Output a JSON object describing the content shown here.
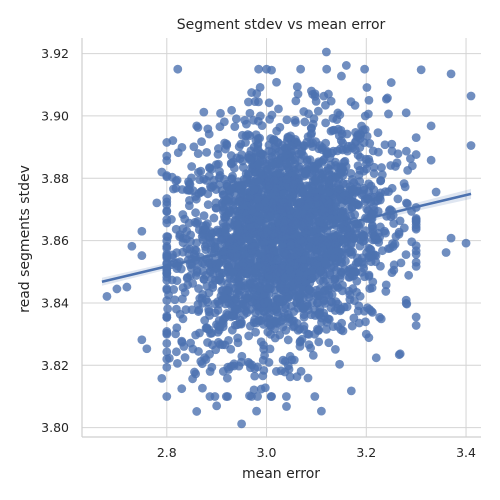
{
  "chart_data": {
    "type": "scatter",
    "title": "Segment stdev vs mean error",
    "xlabel": "mean error",
    "ylabel": "read segments stdev",
    "xlim": [
      2.63,
      3.43
    ],
    "ylim": [
      3.797,
      3.925
    ],
    "xticks": [
      2.8,
      3.0,
      3.2,
      3.4
    ],
    "xtick_labels": [
      "2.8",
      "3.0",
      "3.2",
      "3.4"
    ],
    "yticks": [
      3.8,
      3.82,
      3.84,
      3.86,
      3.88,
      3.9,
      3.92
    ],
    "ytick_labels": [
      "3.80",
      "3.82",
      "3.84",
      "3.86",
      "3.88",
      "3.90",
      "3.92"
    ],
    "grid": true,
    "color": "#4c72b0",
    "regression": {
      "x_start": 2.67,
      "y_start": 3.8468,
      "x_end": 3.41,
      "y_end": 3.875,
      "ci": true
    },
    "cloud": {
      "n": 2600,
      "x_mean": 3.03,
      "x_sd": 0.105,
      "y_mean": 3.8615,
      "y_sd": 0.0185,
      "corr": 0.2
    },
    "outliers": [
      {
        "x": 3.12,
        "y": 3.9205
      },
      {
        "x": 3.37,
        "y": 3.9135
      },
      {
        "x": 3.31,
        "y": 3.9148
      },
      {
        "x": 3.41,
        "y": 3.9064
      },
      {
        "x": 3.41,
        "y": 3.8905
      },
      {
        "x": 3.4,
        "y": 3.8592
      },
      {
        "x": 3.37,
        "y": 3.8608
      },
      {
        "x": 3.36,
        "y": 3.8562
      },
      {
        "x": 3.34,
        "y": 3.8756
      },
      {
        "x": 3.33,
        "y": 3.8858
      },
      {
        "x": 3.28,
        "y": 3.8409
      },
      {
        "x": 3.24,
        "y": 3.8458
      },
      {
        "x": 3.23,
        "y": 3.8349
      },
      {
        "x": 3.22,
        "y": 3.8224
      },
      {
        "x": 3.2,
        "y": 3.83
      },
      {
        "x": 3.17,
        "y": 3.8118
      },
      {
        "x": 3.11,
        "y": 3.8053
      },
      {
        "x": 3.04,
        "y": 3.8068
      },
      {
        "x": 2.95,
        "y": 3.8012
      },
      {
        "x": 2.98,
        "y": 3.8053
      },
      {
        "x": 2.9,
        "y": 3.807
      },
      {
        "x": 2.86,
        "y": 3.8052
      },
      {
        "x": 2.83,
        "y": 3.8125
      },
      {
        "x": 2.79,
        "y": 3.8158
      },
      {
        "x": 2.75,
        "y": 3.8282
      },
      {
        "x": 2.76,
        "y": 3.8253
      },
      {
        "x": 2.7,
        "y": 3.8445
      },
      {
        "x": 2.72,
        "y": 3.8451
      },
      {
        "x": 2.68,
        "y": 3.8421
      },
      {
        "x": 2.73,
        "y": 3.8582
      },
      {
        "x": 2.75,
        "y": 3.8552
      },
      {
        "x": 2.75,
        "y": 3.863
      },
      {
        "x": 2.78,
        "y": 3.8721
      },
      {
        "x": 2.79,
        "y": 3.882
      },
      {
        "x": 2.8,
        "y": 3.8915
      },
      {
        "x": 2.86,
        "y": 3.8968
      },
      {
        "x": 2.88,
        "y": 3.8883
      },
      {
        "x": 2.93,
        "y": 3.9018
      },
      {
        "x": 2.97,
        "y": 3.9075
      },
      {
        "x": 3.0,
        "y": 3.915
      },
      {
        "x": 3.01,
        "y": 3.9147
      },
      {
        "x": 3.02,
        "y": 3.9108
      },
      {
        "x": 3.09,
        "y": 3.908
      },
      {
        "x": 3.16,
        "y": 3.9162
      },
      {
        "x": 3.25,
        "y": 3.9107
      },
      {
        "x": 3.28,
        "y": 3.901
      },
      {
        "x": 3.33,
        "y": 3.8968
      }
    ]
  }
}
